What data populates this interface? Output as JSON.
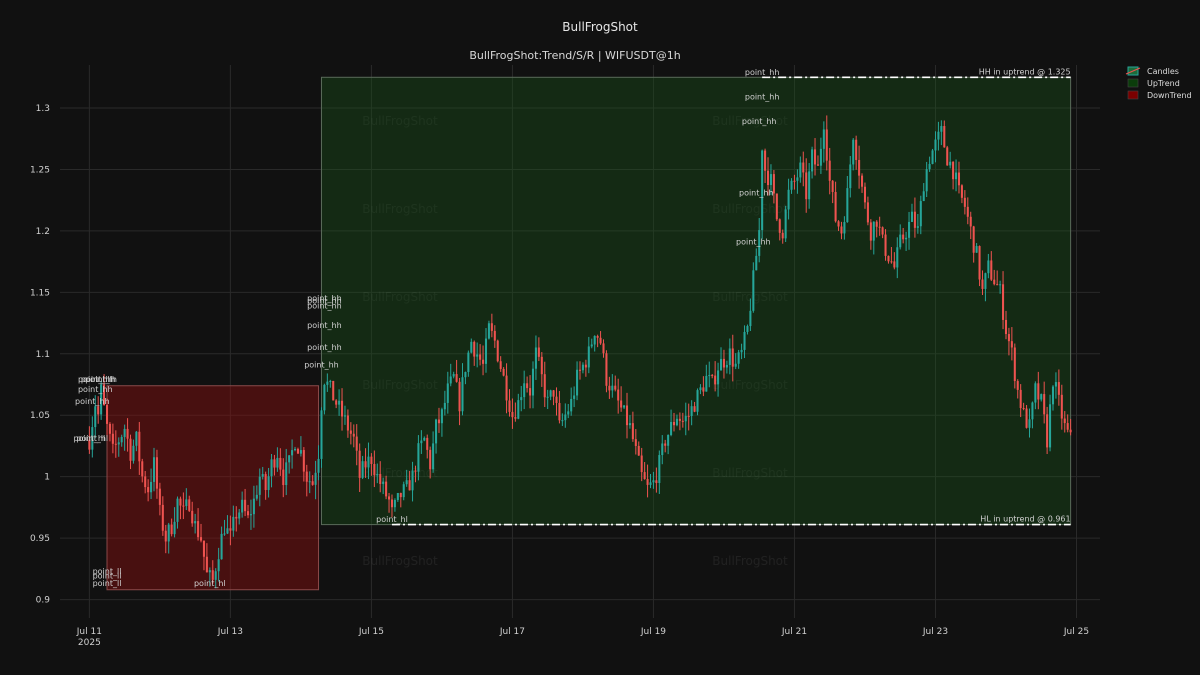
{
  "chart_data": {
    "type": "candlestick",
    "title": "BullFrogShot",
    "subtitle": "BullFrogShot:Trend/S/R | WIFUSDT@1h",
    "ylim": [
      0.885,
      1.335
    ],
    "xlim_hours": [
      -10,
      344
    ],
    "y_ticks": [
      0.9,
      0.95,
      1,
      1.05,
      1.1,
      1.15,
      1.2,
      1.25,
      1.3
    ],
    "y_tick_labels": [
      "0.9",
      "0.95",
      "1",
      "1.05",
      "1.1",
      "1.15",
      "1.2",
      "1.25",
      "1.3"
    ],
    "x_ticks": [
      {
        "label": "Jul 11",
        "sub": "2025",
        "hour": 0
      },
      {
        "label": "Jul 13",
        "sub": "",
        "hour": 48
      },
      {
        "label": "Jul 15",
        "sub": "",
        "hour": 96
      },
      {
        "label": "Jul 17",
        "sub": "",
        "hour": 144
      },
      {
        "label": "Jul 19",
        "sub": "",
        "hour": 192
      },
      {
        "label": "Jul 21",
        "sub": "",
        "hour": 240
      },
      {
        "label": "Jul 23",
        "sub": "",
        "hour": 288
      },
      {
        "label": "Jul 25",
        "sub": "",
        "hour": 336
      }
    ],
    "legend": {
      "position": "top-right",
      "items": [
        {
          "label": "Candles",
          "color": "#26a69a",
          "kind": "candles"
        },
        {
          "label": "UpTrend",
          "color": "#0b3d0b",
          "kind": "box"
        },
        {
          "label": "DownTrend",
          "color": "#7a0000",
          "kind": "box"
        }
      ]
    },
    "colors": {
      "up": "#26a69a",
      "down": "#ef5350",
      "uptrend_fill": "rgba(25,90,25,0.35)",
      "downtrend_fill": "rgba(140,15,15,0.45)",
      "grid": "#2a2a2a"
    },
    "watermark": "BullFrogShot",
    "trend_zones": [
      {
        "kind": "down",
        "x0_hour": 6,
        "x1_hour": 78,
        "y0": 0.908,
        "y1": 1.074
      },
      {
        "kind": "up",
        "x0_hour": 79,
        "x1_hour": 334,
        "y0": 0.961,
        "y1": 1.325
      }
    ],
    "levels": [
      {
        "label": "HH in uptrend @ 1.325",
        "value": 1.325,
        "x0_hour": 229,
        "x1_hour": 334
      },
      {
        "label": "HL in uptrend @ 0.961",
        "value": 0.961,
        "x0_hour": 103,
        "x1_hour": 334
      }
    ],
    "points": [
      {
        "label": "point_hh",
        "hour": 2,
        "value": 1.077
      },
      {
        "label": "point_hh",
        "hour": 3,
        "value": 1.077
      },
      {
        "label": "point_lh",
        "hour": 4,
        "value": 1.077
      },
      {
        "label": "point_hh",
        "hour": 2,
        "value": 1.069
      },
      {
        "label": "point_hh",
        "hour": 1,
        "value": 1.059
      },
      {
        "label": "point_hl",
        "hour": 0,
        "value": 1.029
      },
      {
        "label": "point_hl",
        "hour": 1,
        "value": 1.029
      },
      {
        "label": "point_ll",
        "hour": 6,
        "value": 0.921
      },
      {
        "label": "point_ll",
        "hour": 6,
        "value": 0.917
      },
      {
        "label": "point_ll",
        "hour": 6,
        "value": 0.911
      },
      {
        "label": "point_hl",
        "hour": 41,
        "value": 0.911
      },
      {
        "label": "point_hh",
        "hour": 80,
        "value": 1.143
      },
      {
        "label": "point_hh",
        "hour": 80,
        "value": 1.141
      },
      {
        "label": "point_hh",
        "hour": 80,
        "value": 1.137
      },
      {
        "label": "point_hh",
        "hour": 80,
        "value": 1.121
      },
      {
        "label": "point_hh",
        "hour": 80,
        "value": 1.103
      },
      {
        "label": "point_hh",
        "hour": 79,
        "value": 1.089
      },
      {
        "label": "point_hl",
        "hour": 103,
        "value": 0.963
      },
      {
        "label": "point_hh",
        "hour": 229,
        "value": 1.327
      },
      {
        "label": "point_hh",
        "hour": 229,
        "value": 1.307
      },
      {
        "label": "point_hh",
        "hour": 228,
        "value": 1.287
      },
      {
        "label": "point_hh",
        "hour": 227,
        "value": 1.229
      },
      {
        "label": "point_hh",
        "hour": 226,
        "value": 1.189
      }
    ],
    "close_anchors": [
      [
        0,
        1.03
      ],
      [
        2,
        1.06
      ],
      [
        3,
        1.05
      ],
      [
        4,
        1.07
      ],
      [
        6,
        1.04
      ],
      [
        8,
        1.02
      ],
      [
        10,
        1.03
      ],
      [
        12,
        1.04
      ],
      [
        14,
        1.02
      ],
      [
        16,
        1.03
      ],
      [
        18,
        1.0
      ],
      [
        20,
        0.99
      ],
      [
        22,
        1.01
      ],
      [
        24,
        0.97
      ],
      [
        26,
        0.95
      ],
      [
        28,
        0.96
      ],
      [
        30,
        0.98
      ],
      [
        32,
        0.97
      ],
      [
        34,
        0.98
      ],
      [
        36,
        0.96
      ],
      [
        38,
        0.95
      ],
      [
        40,
        0.92
      ],
      [
        42,
        0.915
      ],
      [
        44,
        0.94
      ],
      [
        46,
        0.96
      ],
      [
        48,
        0.95
      ],
      [
        50,
        0.97
      ],
      [
        52,
        0.975
      ],
      [
        54,
        0.965
      ],
      [
        56,
        0.98
      ],
      [
        58,
        1.0
      ],
      [
        60,
        0.99
      ],
      [
        62,
        1.01
      ],
      [
        64,
        1.02
      ],
      [
        66,
        1.0
      ],
      [
        68,
        1.01
      ],
      [
        70,
        1.03
      ],
      [
        72,
        1.02
      ],
      [
        74,
        1.0
      ],
      [
        76,
        0.995
      ],
      [
        78,
        1.02
      ],
      [
        79,
        1.06
      ],
      [
        80,
        1.08
      ],
      [
        82,
        1.07
      ],
      [
        84,
        1.06
      ],
      [
        86,
        1.05
      ],
      [
        88,
        1.04
      ],
      [
        90,
        1.03
      ],
      [
        92,
        1.0
      ],
      [
        94,
        1.01
      ],
      [
        96,
        1.015
      ],
      [
        98,
        1.0
      ],
      [
        100,
        0.99
      ],
      [
        102,
        0.98
      ],
      [
        103,
        0.97
      ],
      [
        106,
        0.985
      ],
      [
        108,
        0.99
      ],
      [
        110,
        1.0
      ],
      [
        112,
        1.02
      ],
      [
        114,
        1.03
      ],
      [
        116,
        1.01
      ],
      [
        118,
        1.04
      ],
      [
        120,
        1.05
      ],
      [
        122,
        1.07
      ],
      [
        124,
        1.08
      ],
      [
        126,
        1.06
      ],
      [
        128,
        1.09
      ],
      [
        130,
        1.11
      ],
      [
        132,
        1.1
      ],
      [
        134,
        1.09
      ],
      [
        136,
        1.12
      ],
      [
        138,
        1.11
      ],
      [
        140,
        1.09
      ],
      [
        142,
        1.07
      ],
      [
        144,
        1.05
      ],
      [
        146,
        1.06
      ],
      [
        148,
        1.08
      ],
      [
        150,
        1.07
      ],
      [
        152,
        1.1
      ],
      [
        154,
        1.08
      ],
      [
        156,
        1.06
      ],
      [
        158,
        1.07
      ],
      [
        160,
        1.04
      ],
      [
        162,
        1.05
      ],
      [
        164,
        1.06
      ],
      [
        166,
        1.08
      ],
      [
        168,
        1.09
      ],
      [
        170,
        1.1
      ],
      [
        172,
        1.12
      ],
      [
        174,
        1.11
      ],
      [
        176,
        1.08
      ],
      [
        178,
        1.07
      ],
      [
        180,
        1.06
      ],
      [
        182,
        1.05
      ],
      [
        184,
        1.04
      ],
      [
        186,
        1.02
      ],
      [
        188,
        1.0
      ],
      [
        190,
        0.99
      ],
      [
        192,
        0.995
      ],
      [
        194,
        1.01
      ],
      [
        196,
        1.03
      ],
      [
        198,
        1.04
      ],
      [
        200,
        1.05
      ],
      [
        202,
        1.045
      ],
      [
        204,
        1.05
      ],
      [
        206,
        1.06
      ],
      [
        208,
        1.07
      ],
      [
        210,
        1.08
      ],
      [
        212,
        1.075
      ],
      [
        214,
        1.09
      ],
      [
        216,
        1.095
      ],
      [
        218,
        1.1
      ],
      [
        220,
        1.09
      ],
      [
        222,
        1.1
      ],
      [
        224,
        1.12
      ],
      [
        226,
        1.16
      ],
      [
        228,
        1.2
      ],
      [
        229,
        1.27
      ],
      [
        230,
        1.25
      ],
      [
        232,
        1.24
      ],
      [
        234,
        1.21
      ],
      [
        236,
        1.2
      ],
      [
        238,
        1.23
      ],
      [
        240,
        1.24
      ],
      [
        242,
        1.25
      ],
      [
        244,
        1.23
      ],
      [
        246,
        1.26
      ],
      [
        248,
        1.25
      ],
      [
        250,
        1.29
      ],
      [
        252,
        1.24
      ],
      [
        254,
        1.21
      ],
      [
        256,
        1.2
      ],
      [
        258,
        1.23
      ],
      [
        260,
        1.28
      ],
      [
        262,
        1.25
      ],
      [
        264,
        1.22
      ],
      [
        266,
        1.2
      ],
      [
        268,
        1.21
      ],
      [
        270,
        1.19
      ],
      [
        272,
        1.18
      ],
      [
        274,
        1.17
      ],
      [
        276,
        1.19
      ],
      [
        278,
        1.2
      ],
      [
        280,
        1.21
      ],
      [
        282,
        1.2
      ],
      [
        284,
        1.24
      ],
      [
        286,
        1.26
      ],
      [
        288,
        1.27
      ],
      [
        290,
        1.28
      ],
      [
        292,
        1.26
      ],
      [
        294,
        1.25
      ],
      [
        296,
        1.23
      ],
      [
        298,
        1.22
      ],
      [
        300,
        1.2
      ],
      [
        302,
        1.18
      ],
      [
        304,
        1.15
      ],
      [
        306,
        1.17
      ],
      [
        308,
        1.16
      ],
      [
        310,
        1.15
      ],
      [
        312,
        1.12
      ],
      [
        314,
        1.1
      ],
      [
        316,
        1.07
      ],
      [
        318,
        1.05
      ],
      [
        320,
        1.04
      ],
      [
        322,
        1.07
      ],
      [
        324,
        1.06
      ],
      [
        326,
        1.03
      ],
      [
        328,
        1.08
      ],
      [
        330,
        1.06
      ],
      [
        332,
        1.04
      ],
      [
        334,
        1.03
      ]
    ]
  }
}
